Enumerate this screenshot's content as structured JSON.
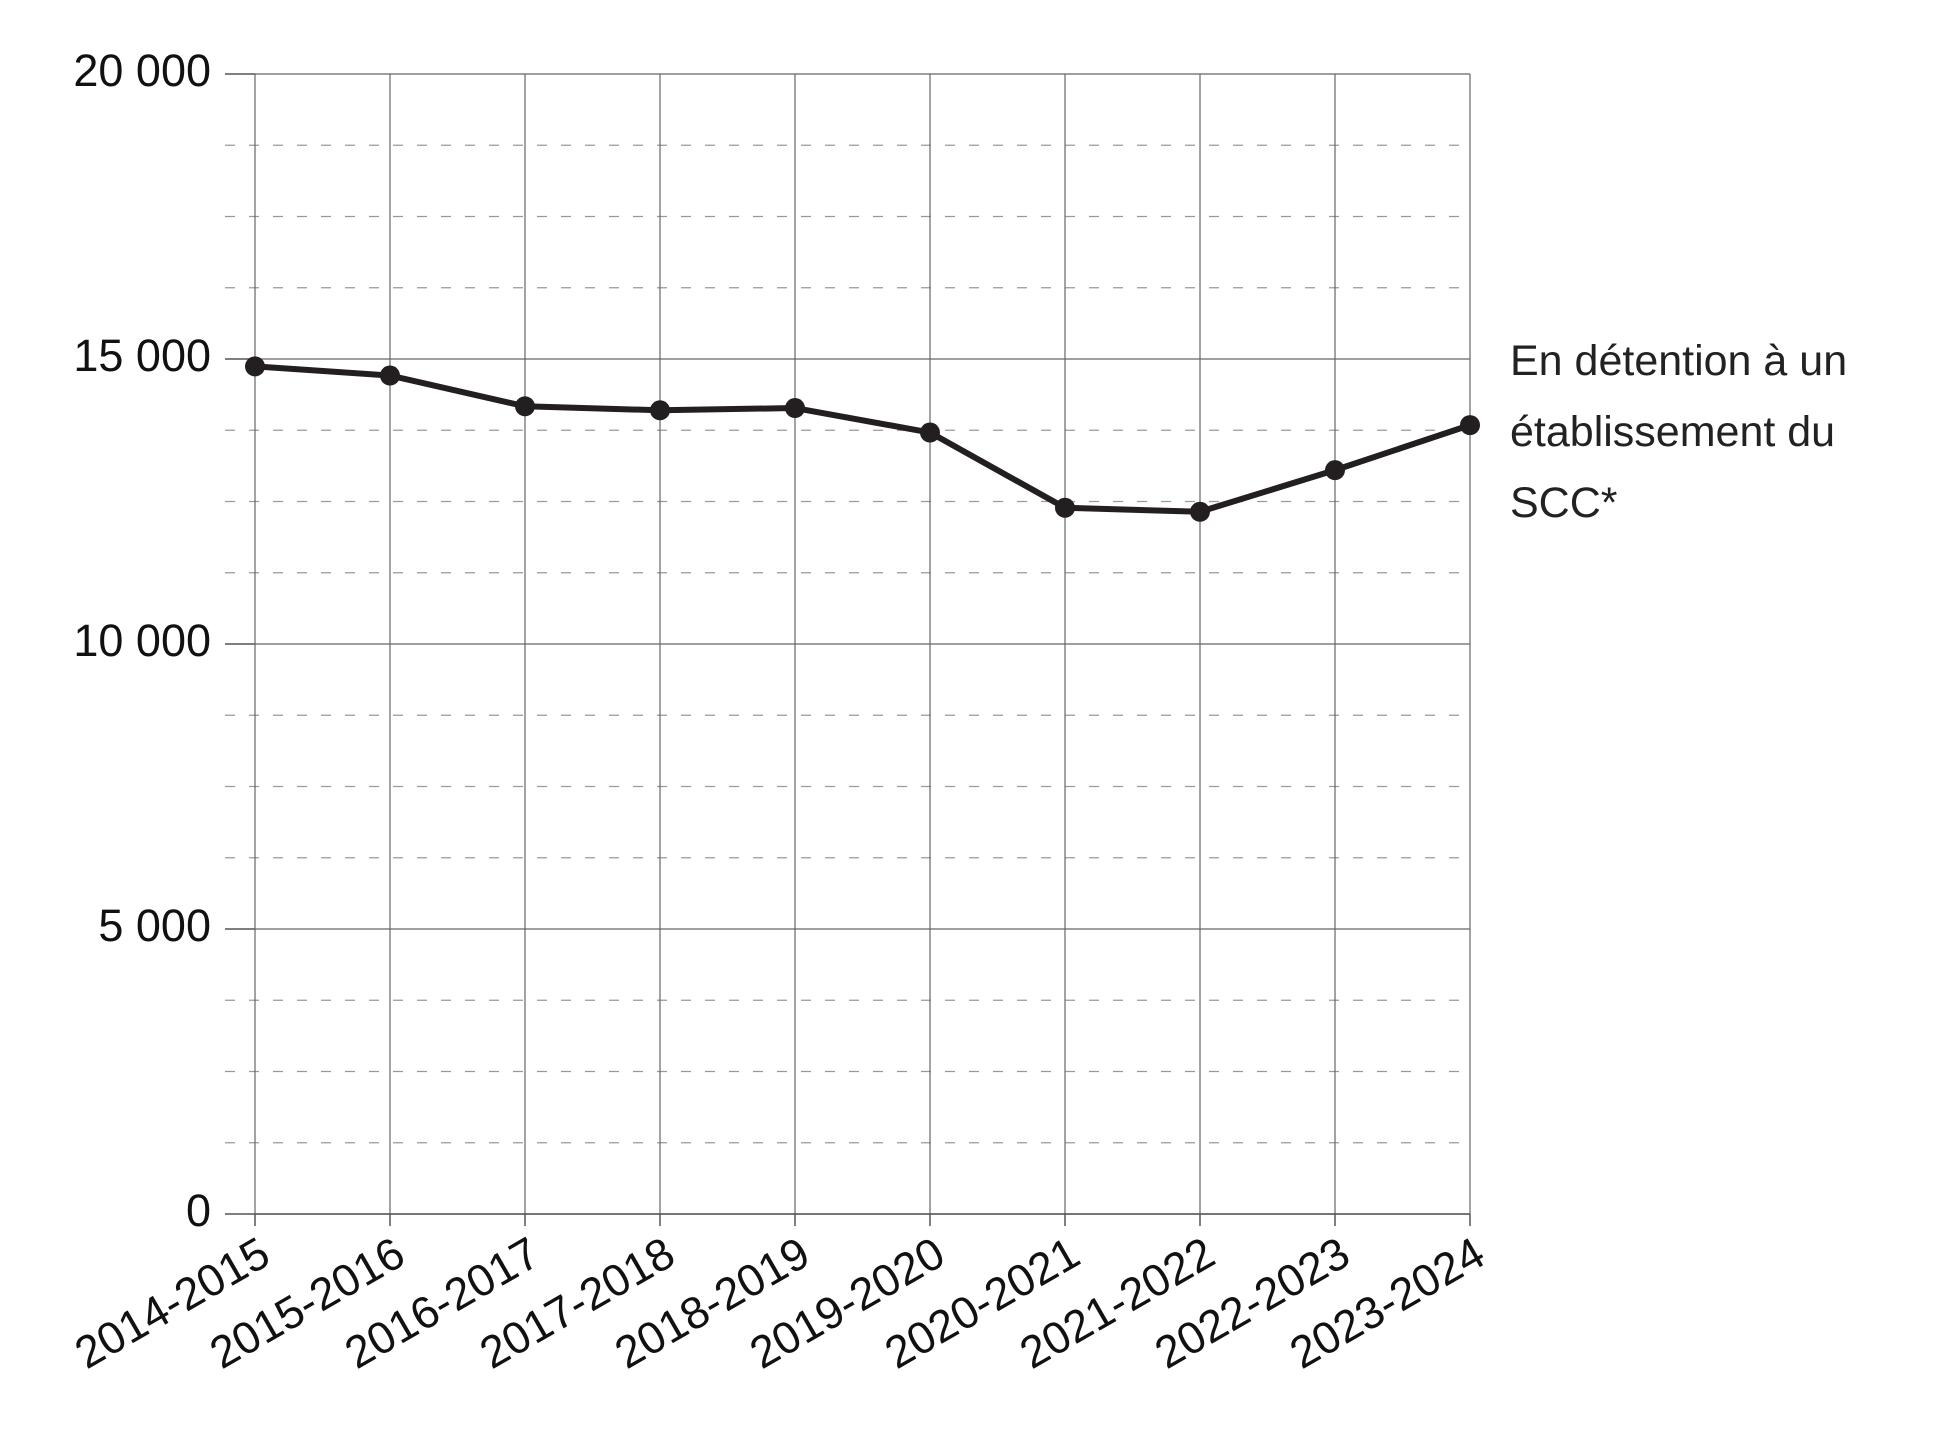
{
  "chart_data": {
    "type": "line",
    "categories": [
      "2014-2015",
      "2015-2016",
      "2016-2017",
      "2017-2018",
      "2018-2019",
      "2019-2020",
      "2020-2021",
      "2021-2022",
      "2022-2023",
      "2023-2024"
    ],
    "series": [
      {
        "name": "En détention à un établissement du SCC*",
        "color": "#231f20",
        "values": [
          14870,
          14710,
          14170,
          14100,
          14140,
          13710,
          12390,
          12320,
          13050,
          13840
        ]
      }
    ],
    "ylim": [
      0,
      20000
    ],
    "yticks": [
      0,
      {
        "value": 5000,
        "label": "5 000"
      },
      {
        "value": 10000,
        "label": "10 000"
      },
      {
        "value": 15000,
        "label": "15 000"
      },
      {
        "value": 20000,
        "label": "20 000"
      }
    ],
    "minor_yticks": [
      1250,
      2500,
      3750,
      6250,
      7500,
      8750,
      11250,
      12500,
      13750,
      16250,
      17500,
      18750
    ],
    "grid": true
  }
}
